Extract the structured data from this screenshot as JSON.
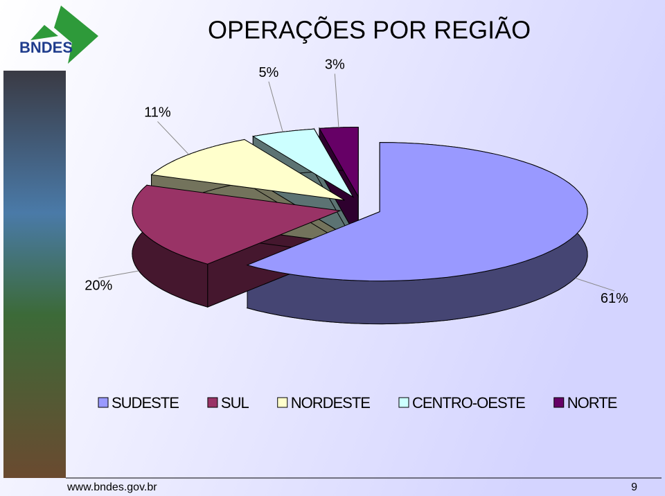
{
  "header": {
    "logo": "BNDES"
  },
  "chart_data": {
    "type": "pie",
    "title": "OPERAÇÕES POR REGIÃO",
    "categories": [
      "SUDESTE",
      "SUL",
      "NORDESTE",
      "CENTRO-OESTE",
      "NORTE"
    ],
    "values": [
      61,
      20,
      11,
      5,
      3
    ],
    "value_labels": [
      "61%",
      "20%",
      "11%",
      "5%",
      "3%"
    ],
    "colors": [
      "#9999ff",
      "#993366",
      "#ffffcc",
      "#ccffff",
      "#660066"
    ],
    "legend": "bottom"
  },
  "footer": {
    "url": "www.bndes.gov.br",
    "page": 9
  }
}
